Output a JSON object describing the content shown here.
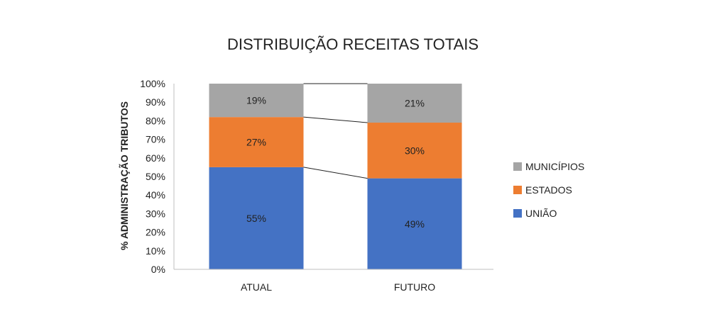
{
  "chart_data": {
    "type": "bar",
    "stacked": true,
    "percent_stacked": true,
    "title": "DISTRIBUIÇÃO RECEITAS TOTAIS",
    "xlabel": "",
    "ylabel": "% ADMINISTRAÇÃO TRIBUTOS",
    "ylim": [
      0,
      100
    ],
    "yticks": [
      "0%",
      "10%",
      "20%",
      "30%",
      "40%",
      "50%",
      "60%",
      "70%",
      "80%",
      "90%",
      "100%"
    ],
    "categories": [
      "ATUAL",
      "FUTURO"
    ],
    "series": [
      {
        "name": "UNIÃO",
        "values": [
          55,
          49
        ],
        "labels": [
          "55%",
          "49%"
        ],
        "color": "#4472C4"
      },
      {
        "name": "ESTADOS",
        "values": [
          27,
          30
        ],
        "labels": [
          "27%",
          "30%"
        ],
        "color": "#ED7D31"
      },
      {
        "name": "MUNICÍPIOS",
        "values": [
          19,
          21
        ],
        "labels": [
          "19%",
          "21%"
        ],
        "color": "#A5A5A5"
      }
    ],
    "series_lines": true,
    "legend": [
      "MUNICÍPIOS",
      "ESTADOS",
      "UNIÃO"
    ],
    "legend_position": "right",
    "grid": false
  }
}
